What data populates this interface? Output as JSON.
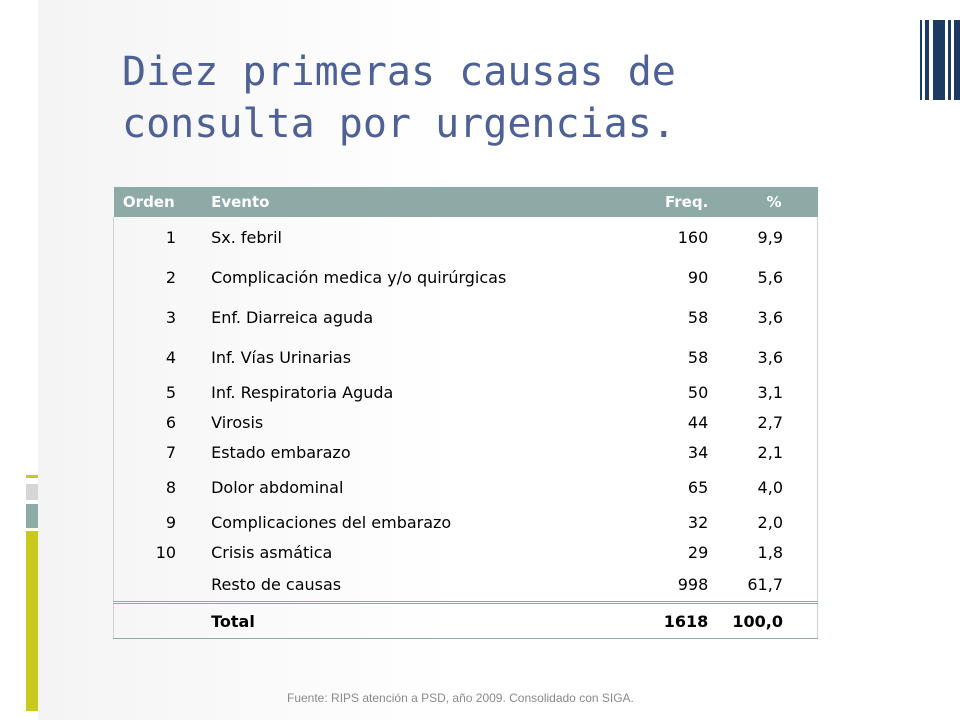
{
  "slide": {
    "title": "Diez primeras causas de consulta por urgencias.",
    "source": "Fuente: RIPS atención a PSD, año 2009. Consolidado con SIGA."
  },
  "table": {
    "headers": {
      "orden": "Orden",
      "evento": "Evento",
      "freq": "Freq.",
      "pct": "%"
    },
    "rows": [
      {
        "orden": "1",
        "evento": "Sx.  febril",
        "freq": "160",
        "pct": "9,9"
      },
      {
        "orden": "2",
        "evento": "Complicación  medica y/o quirúrgicas",
        "freq": "90",
        "pct": "5,6"
      },
      {
        "orden": "3",
        "evento": "Enf. Diarreica aguda",
        "freq": "58",
        "pct": "3,6"
      },
      {
        "orden": "4",
        "evento": "Inf. Vías Urinarias",
        "freq": "58",
        "pct": "3,6"
      },
      {
        "orden": "5",
        "evento": "Inf. Respiratoria  Aguda",
        "freq": "50",
        "pct": "3,1"
      },
      {
        "orden": "6",
        "evento": "Virosis",
        "freq": "44",
        "pct": "2,7"
      },
      {
        "orden": "7",
        "evento": "Estado embarazo",
        "freq": "34",
        "pct": "2,1"
      },
      {
        "orden": "8",
        "evento": "Dolor abdominal",
        "freq": "65",
        "pct": "4,0"
      },
      {
        "orden": "9",
        "evento": "Complicaciones  del embarazo",
        "freq": "32",
        "pct": "2,0"
      },
      {
        "orden": "10",
        "evento": "Crisis asmática",
        "freq": "29",
        "pct": "1,8"
      },
      {
        "orden": "",
        "evento": "Resto de causas",
        "freq": "998",
        "pct": "61,7"
      }
    ],
    "total": {
      "orden": "",
      "evento": "Total",
      "freq": "1618",
      "pct": "100,0"
    }
  },
  "colors": {
    "title": "#4d6196",
    "header_bg": "#8eaaa6",
    "accent_dark": "#1c3a64",
    "accent_yellow": "#c8c81e"
  }
}
